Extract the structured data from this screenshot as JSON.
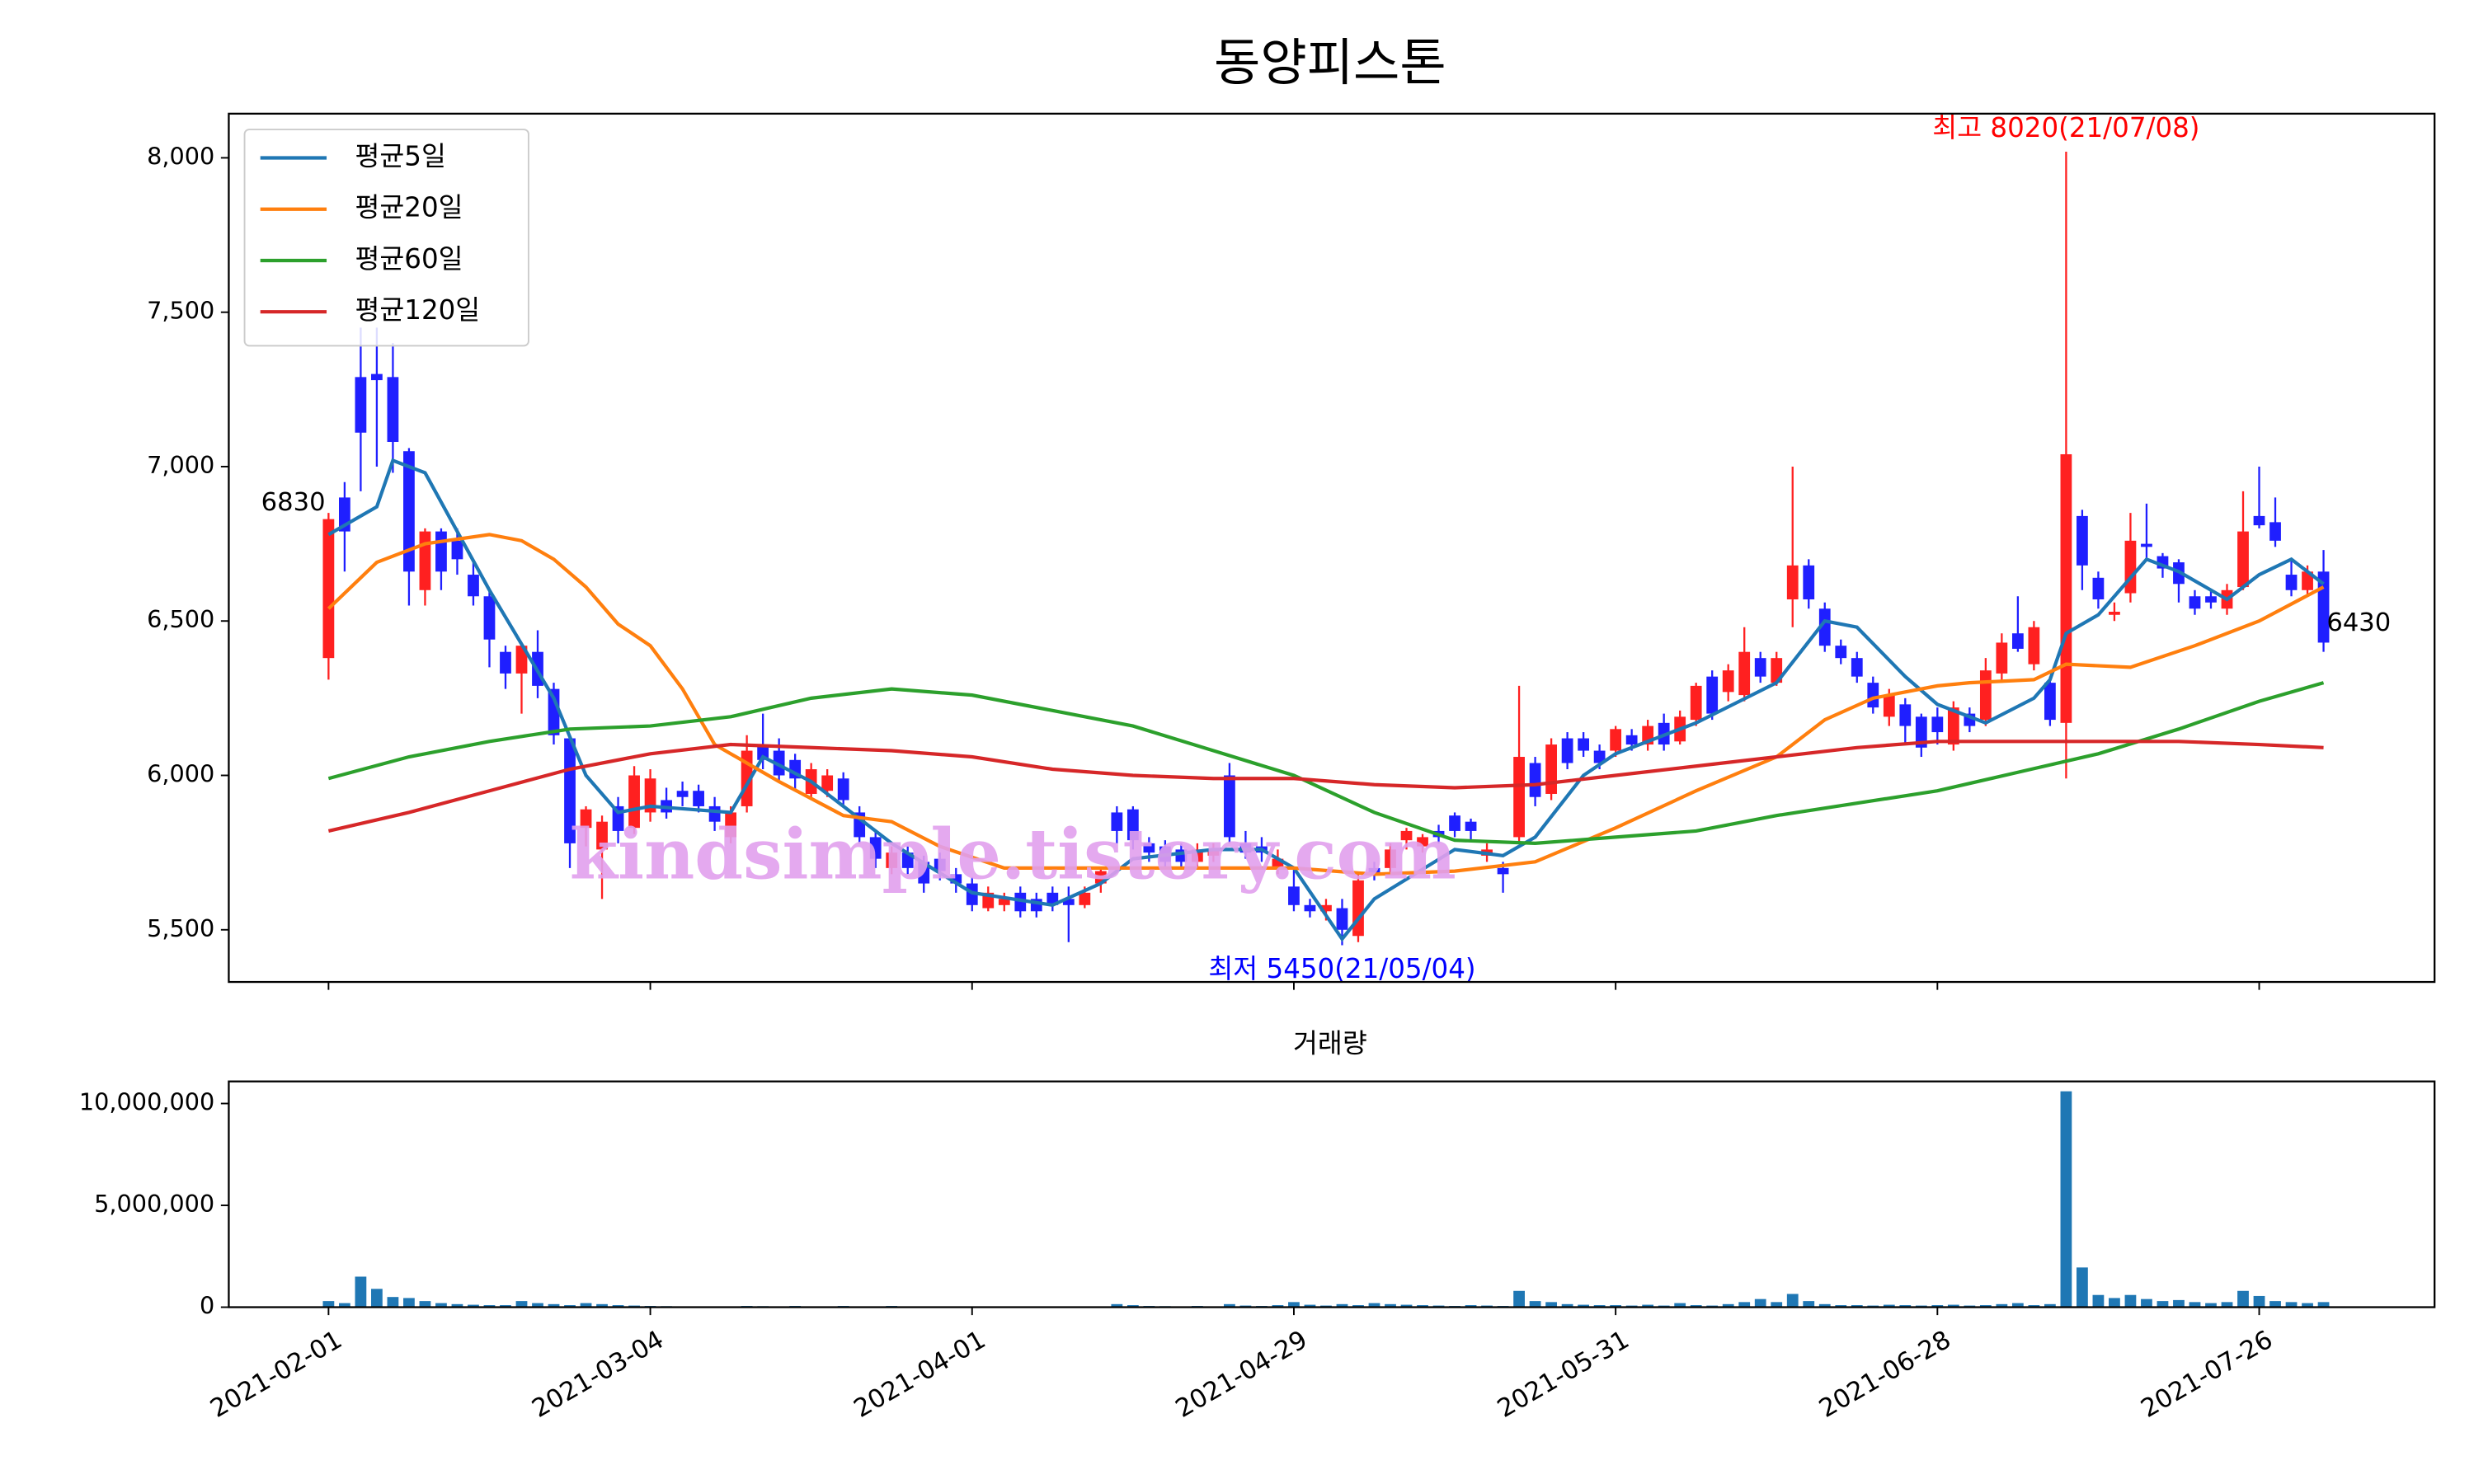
{
  "chart_data": [
    {
      "type": "candlestick",
      "title": "동양피스톤",
      "up_color": "#ff2020",
      "down_color": "#1f1fff",
      "open": [
        6380,
        6900,
        7290,
        7300,
        7290,
        7050,
        6600,
        6790,
        6760,
        6650,
        6580,
        6400,
        6330,
        6400,
        6280,
        6120,
        5830,
        5760,
        5900,
        5830,
        5880,
        5920,
        5950,
        5950,
        5900,
        5800,
        5900,
        6100,
        6080,
        6050,
        5940,
        5950,
        5990,
        5880,
        5800,
        5700,
        5750,
        5720,
        5730,
        5680,
        5650,
        5570,
        5580,
        5620,
        5600,
        5620,
        5600,
        5580,
        5650,
        5880,
        5890,
        5780,
        5770,
        5760,
        5720,
        5740,
        6000,
        5780,
        5770,
        5700,
        5640,
        5580,
        5560,
        5570,
        5480,
        5700,
        5700,
        5790,
        5770,
        5820,
        5870,
        5850,
        5740,
        5700,
        5800,
        6040,
        5940,
        6120,
        6120,
        6080,
        6080,
        6130,
        6100,
        6170,
        6110,
        6180,
        6320,
        6270,
        6260,
        6380,
        6300,
        6570,
        6680,
        6540,
        6420,
        6380,
        6300,
        6190,
        6230,
        6190,
        6190,
        6100,
        6200,
        6180,
        6330,
        6460,
        6360,
        6300,
        6170,
        6840,
        6640,
        6520,
        6590,
        6750,
        6710,
        6690,
        6580,
        6580,
        6540,
        6610,
        6840,
        6820,
        6650,
        6600,
        6660
      ],
      "high": [
        6850,
        6950,
        7450,
        7450,
        7400,
        7060,
        6800,
        6800,
        6800,
        6700,
        6600,
        6420,
        6430,
        6470,
        6300,
        6130,
        5900,
        5870,
        5930,
        6030,
        6020,
        5960,
        5980,
        5970,
        5930,
        5900,
        6130,
        6200,
        6120,
        6070,
        6040,
        6020,
        6010,
        5900,
        5820,
        5770,
        5770,
        5740,
        5750,
        5700,
        5670,
        5640,
        5620,
        5640,
        5620,
        5640,
        5640,
        5640,
        5700,
        5900,
        5900,
        5800,
        5790,
        5780,
        5780,
        5780,
        6040,
        5820,
        5800,
        5760,
        5700,
        5600,
        5600,
        5600,
        5680,
        5720,
        5780,
        5830,
        5810,
        5840,
        5880,
        5860,
        5780,
        5720,
        6290,
        6060,
        6120,
        6140,
        6140,
        6100,
        6160,
        6150,
        6180,
        6200,
        6210,
        6300,
        6340,
        6360,
        6480,
        6400,
        6400,
        7000,
        6700,
        6560,
        6440,
        6400,
        6320,
        6280,
        6250,
        6200,
        6220,
        6240,
        6220,
        6380,
        6460,
        6580,
        6500,
        6320,
        8020,
        6860,
        6660,
        6560,
        6850,
        6880,
        6720,
        6700,
        6600,
        6600,
        6620,
        6920,
        7000,
        6900,
        6700,
        6680,
        6730
      ],
      "low": [
        6310,
        6660,
        6920,
        7000,
        6980,
        6550,
        6550,
        6600,
        6650,
        6550,
        6350,
        6280,
        6200,
        6250,
        6100,
        5700,
        5770,
        5600,
        5780,
        5810,
        5850,
        5860,
        5900,
        5880,
        5820,
        5780,
        5880,
        6020,
        5980,
        5950,
        5920,
        5930,
        5900,
        5780,
        5700,
        5680,
        5680,
        5620,
        5660,
        5620,
        5560,
        5560,
        5560,
        5540,
        5540,
        5560,
        5460,
        5570,
        5620,
        5780,
        5760,
        5720,
        5700,
        5700,
        5700,
        5720,
        5780,
        5730,
        5720,
        5680,
        5560,
        5540,
        5530,
        5450,
        5460,
        5660,
        5680,
        5760,
        5750,
        5780,
        5800,
        5790,
        5720,
        5620,
        5780,
        5900,
        5920,
        6020,
        6060,
        6020,
        6060,
        6080,
        6080,
        6080,
        6100,
        6160,
        6180,
        6240,
        6240,
        6300,
        6290,
        6480,
        6540,
        6400,
        6360,
        6300,
        6200,
        6160,
        6100,
        6060,
        6100,
        6080,
        6140,
        6160,
        6300,
        6400,
        6340,
        6160,
        5990,
        6600,
        6540,
        6500,
        6560,
        6700,
        6640,
        6560,
        6520,
        6540,
        6520,
        6600,
        6800,
        6740,
        6580,
        6580,
        6400
      ],
      "close": [
        6830,
        6790,
        7110,
        7280,
        7080,
        6660,
        6790,
        6660,
        6700,
        6580,
        6440,
        6330,
        6420,
        6290,
        6130,
        5780,
        5890,
        5850,
        5820,
        6000,
        5990,
        5880,
        5930,
        5900,
        5850,
        5880,
        6080,
        6050,
        6000,
        5990,
        6020,
        6000,
        5920,
        5800,
        5730,
        5750,
        5700,
        5650,
        5690,
        5650,
        5580,
        5620,
        5600,
        5560,
        5560,
        5580,
        5580,
        5620,
        5690,
        5820,
        5790,
        5750,
        5720,
        5720,
        5760,
        5760,
        5800,
        5750,
        5750,
        5730,
        5580,
        5560,
        5580,
        5500,
        5660,
        5680,
        5760,
        5820,
        5800,
        5800,
        5820,
        5820,
        5760,
        5680,
        6060,
        5930,
        6100,
        6040,
        6080,
        6040,
        6150,
        6100,
        6160,
        6100,
        6190,
        6290,
        6200,
        6340,
        6400,
        6320,
        6380,
        6680,
        6570,
        6420,
        6380,
        6320,
        6220,
        6260,
        6160,
        6090,
        6140,
        6220,
        6160,
        6340,
        6430,
        6410,
        6480,
        6180,
        7040,
        6680,
        6570,
        6530,
        6760,
        6740,
        6670,
        6620,
        6540,
        6560,
        6600,
        6790,
        6810,
        6760,
        6600,
        6660,
        6430
      ],
      "series": [
        {
          "name": "평균5일",
          "color": "#1f77b4",
          "x": [
            0,
            3,
            4,
            6,
            10,
            14,
            16,
            18,
            20,
            25,
            27,
            30,
            35,
            40,
            45,
            48,
            50,
            55,
            58,
            60,
            63,
            65,
            70,
            73,
            75,
            78,
            80,
            85,
            90,
            93,
            95,
            98,
            100,
            103,
            106,
            107,
            108,
            110,
            113,
            115,
            118,
            120,
            122,
            124
          ],
          "values": [
            6780,
            6870,
            7020,
            6980,
            6600,
            6250,
            6000,
            5880,
            5900,
            5880,
            6060,
            5980,
            5780,
            5620,
            5580,
            5650,
            5730,
            5760,
            5760,
            5700,
            5470,
            5600,
            5760,
            5740,
            5800,
            6000,
            6070,
            6170,
            6300,
            6500,
            6480,
            6320,
            6230,
            6170,
            6250,
            6310,
            6460,
            6520,
            6700,
            6660,
            6570,
            6650,
            6700,
            6620
          ]
        },
        {
          "name": "평균20일",
          "color": "#ff7f0e",
          "x": [
            0,
            3,
            6,
            10,
            12,
            14,
            16,
            18,
            20,
            22,
            24,
            28,
            32,
            35,
            38,
            42,
            47,
            52,
            60,
            65,
            70,
            75,
            80,
            85,
            90,
            93,
            96,
            100,
            102,
            106,
            108,
            112,
            116,
            120,
            124
          ],
          "values": [
            6540,
            6690,
            6750,
            6780,
            6760,
            6700,
            6610,
            6490,
            6420,
            6280,
            6100,
            5980,
            5870,
            5850,
            5770,
            5700,
            5700,
            5700,
            5700,
            5680,
            5690,
            5720,
            5830,
            5950,
            6060,
            6180,
            6250,
            6290,
            6300,
            6310,
            6360,
            6350,
            6420,
            6500,
            6610
          ]
        },
        {
          "name": "평균60일",
          "color": "#2ca02c",
          "x": [
            0,
            5,
            10,
            15,
            20,
            25,
            30,
            35,
            40,
            45,
            50,
            55,
            60,
            65,
            70,
            75,
            80,
            85,
            90,
            95,
            100,
            105,
            110,
            115,
            120,
            124
          ],
          "values": [
            5990,
            6060,
            6110,
            6150,
            6160,
            6190,
            6250,
            6280,
            6260,
            6210,
            6160,
            6080,
            6000,
            5880,
            5790,
            5780,
            5800,
            5820,
            5870,
            5910,
            5950,
            6010,
            6070,
            6150,
            6240,
            6300
          ]
        },
        {
          "name": "평균120일",
          "color": "#d62728",
          "x": [
            0,
            5,
            10,
            15,
            20,
            25,
            30,
            35,
            40,
            45,
            50,
            55,
            60,
            65,
            70,
            75,
            80,
            85,
            90,
            95,
            100,
            105,
            110,
            115,
            120,
            124
          ],
          "values": [
            5820,
            5880,
            5950,
            6020,
            6070,
            6100,
            6090,
            6080,
            6060,
            6020,
            6000,
            5990,
            5990,
            5970,
            5960,
            5970,
            6000,
            6030,
            6060,
            6090,
            6110,
            6110,
            6110,
            6110,
            6100,
            6090
          ]
        }
      ],
      "annotations": [
        "최고 8020(21/07/08)",
        "최저 5450(21/05/04)"
      ],
      "watermark": "kindsimple.tistory.com",
      "xlim": [
        -6.2,
        130.9
      ],
      "xticks": [
        0,
        20,
        40,
        60,
        80,
        100,
        120
      ],
      "ylim": [
        5331,
        8143
      ],
      "yticks": [
        {
          "value": 5500,
          "label": "5,500"
        },
        {
          "value": 6000,
          "label": "6,000"
        },
        {
          "value": 6500,
          "label": "6,500"
        },
        {
          "value": 7000,
          "label": "7,000"
        },
        {
          "value": 7500,
          "label": "7,500"
        },
        {
          "value": 8000,
          "label": "8,000"
        }
      ],
      "legend": "upper left"
    },
    {
      "type": "bar",
      "title": "거래량",
      "color": "#1f77b4",
      "values": [
        300000,
        200000,
        1500000,
        900000,
        500000,
        450000,
        300000,
        200000,
        150000,
        120000,
        100000,
        100000,
        300000,
        200000,
        150000,
        100000,
        200000,
        150000,
        100000,
        80000,
        60000,
        50000,
        40000,
        40000,
        40000,
        40000,
        60000,
        50000,
        40000,
        60000,
        40000,
        30000,
        60000,
        30000,
        40000,
        60000,
        30000,
        20000,
        30000,
        20000,
        20000,
        30000,
        20000,
        20000,
        30000,
        20000,
        20000,
        20000,
        30000,
        150000,
        100000,
        60000,
        50000,
        40000,
        60000,
        30000,
        150000,
        80000,
        60000,
        100000,
        250000,
        120000,
        80000,
        150000,
        100000,
        200000,
        150000,
        120000,
        100000,
        80000,
        60000,
        100000,
        80000,
        60000,
        800000,
        300000,
        250000,
        150000,
        120000,
        100000,
        100000,
        80000,
        120000,
        80000,
        200000,
        100000,
        80000,
        150000,
        250000,
        400000,
        250000,
        650000,
        300000,
        150000,
        100000,
        100000,
        80000,
        120000,
        100000,
        80000,
        100000,
        120000,
        80000,
        100000,
        150000,
        200000,
        100000,
        150000,
        10600000,
        1950000,
        600000,
        450000,
        600000,
        400000,
        300000,
        350000,
        250000,
        200000,
        250000,
        800000,
        550000,
        300000,
        250000,
        200000,
        250000
      ],
      "xlim": [
        -6.2,
        130.9
      ],
      "xticks": [
        {
          "value": 0,
          "label": "2021-02-01"
        },
        {
          "value": 20,
          "label": "2021-03-04"
        },
        {
          "value": 40,
          "label": "2021-04-01"
        },
        {
          "value": 60,
          "label": "2021-04-29"
        },
        {
          "value": 80,
          "label": "2021-05-31"
        },
        {
          "value": 100,
          "label": "2021-06-28"
        },
        {
          "value": 120,
          "label": "2021-07-26"
        }
      ],
      "ylim": [
        0,
        11085000
      ],
      "yticks": [
        0,
        {
          "value": 5000000,
          "label": "5,000,000"
        },
        {
          "value": 10000000,
          "label": "10,000,000"
        }
      ]
    }
  ]
}
